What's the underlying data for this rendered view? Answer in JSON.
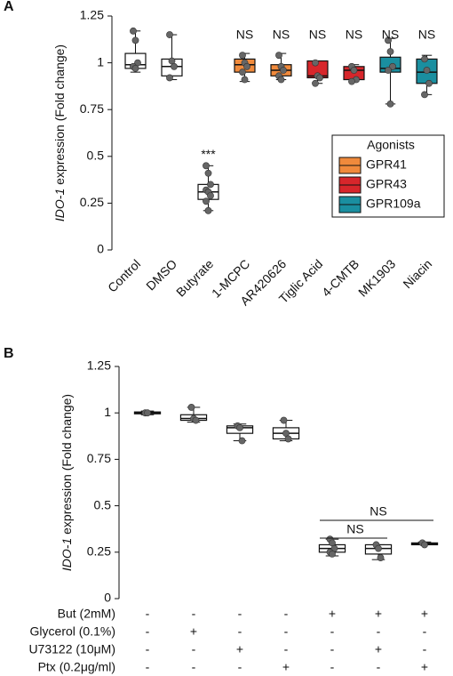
{
  "chart_data": [
    {
      "type": "box",
      "panel": "A",
      "y_label_italic": "IDO-1",
      "y_label": " expression (Fold change)",
      "ylim": [
        0,
        1.25
      ],
      "yticks": [
        0,
        0.25,
        0.5,
        0.75,
        1,
        1.25
      ],
      "categories": [
        "Control",
        "DMSO",
        "Butyrate",
        "1-MCPC",
        "AR420626",
        "Tiglic Acid",
        "4-CMTB",
        "MK1903",
        "Niacin"
      ],
      "colors": [
        "#ffffff",
        "#ffffff",
        "#ffffff",
        "#f08a3c",
        "#f08a3c",
        "#d7262b",
        "#d7262b",
        "#1a8fa0",
        "#1a8fa0"
      ],
      "boxes": [
        {
          "min": 0.95,
          "q1": 0.97,
          "median": 0.99,
          "q3": 1.05,
          "max": 1.17,
          "points": [
            1.17,
            1.12,
            1.0,
            0.98,
            0.97
          ]
        },
        {
          "min": 0.91,
          "q1": 0.93,
          "median": 0.98,
          "q3": 1.02,
          "max": 1.15,
          "points": [
            1.15,
            1.01,
            0.98,
            0.92
          ]
        },
        {
          "min": 0.21,
          "q1": 0.27,
          "median": 0.31,
          "q3": 0.35,
          "max": 0.45,
          "points": [
            0.45,
            0.41,
            0.35,
            0.32,
            0.31,
            0.29,
            0.26,
            0.21
          ]
        },
        {
          "min": 0.9,
          "q1": 0.95,
          "median": 0.99,
          "q3": 1.02,
          "max": 1.05,
          "points": [
            1.04,
            1.0,
            0.98,
            0.95,
            0.91
          ]
        },
        {
          "min": 0.91,
          "q1": 0.93,
          "median": 0.96,
          "q3": 0.99,
          "max": 1.05,
          "points": [
            1.04,
            0.98,
            0.96,
            0.93,
            0.91
          ]
        },
        {
          "min": 0.89,
          "q1": 0.92,
          "median": 0.93,
          "q3": 1.01,
          "max": 1.01,
          "points": [
            1.0,
            0.93,
            0.92,
            0.89
          ]
        },
        {
          "min": 0.9,
          "q1": 0.91,
          "median": 0.96,
          "q3": 0.98,
          "max": 0.99,
          "points": [
            0.98,
            0.96,
            0.91,
            0.9
          ]
        },
        {
          "min": 0.78,
          "q1": 0.95,
          "median": 0.97,
          "q3": 1.03,
          "max": 1.13,
          "points": [
            1.12,
            1.06,
            0.98,
            0.96,
            0.78
          ]
        },
        {
          "min": 0.83,
          "q1": 0.89,
          "median": 0.95,
          "q3": 1.02,
          "max": 1.04,
          "points": [
            1.02,
            0.96,
            0.89,
            0.83
          ]
        }
      ],
      "annotations": [
        {
          "index": 2,
          "text": "***"
        },
        {
          "index": 3,
          "text": "NS"
        },
        {
          "index": 4,
          "text": "NS"
        },
        {
          "index": 5,
          "text": "NS"
        },
        {
          "index": 6,
          "text": "NS"
        },
        {
          "index": 7,
          "text": "NS"
        },
        {
          "index": 8,
          "text": "NS"
        }
      ],
      "legend": {
        "title": "Agonists",
        "entries": [
          {
            "name": "GPR41",
            "color": "#f08a3c"
          },
          {
            "name": "GPR43",
            "color": "#d7262b"
          },
          {
            "name": "GPR109a",
            "color": "#1a8fa0"
          }
        ]
      }
    },
    {
      "type": "box",
      "panel": "B",
      "y_label_italic": "IDO-1",
      "y_label": " expression (Fold change)",
      "ylim": [
        0,
        1.25
      ],
      "yticks": [
        0,
        0.25,
        0.5,
        0.75,
        1,
        1.25
      ],
      "colors": [
        "#ffffff",
        "#ffffff",
        "#ffffff",
        "#ffffff",
        "#ffffff",
        "#ffffff",
        "#ffffff"
      ],
      "boxes": [
        {
          "min": 0.99,
          "q1": 0.995,
          "median": 1.0,
          "q3": 1.005,
          "max": 1.01,
          "points": [
            1.0,
            1.0
          ]
        },
        {
          "min": 0.95,
          "q1": 0.96,
          "median": 0.97,
          "q3": 0.99,
          "max": 1.03,
          "points": [
            1.03,
            0.97,
            0.96
          ]
        },
        {
          "min": 0.85,
          "q1": 0.89,
          "median": 0.92,
          "q3": 0.93,
          "max": 0.94,
          "points": [
            0.93,
            0.92,
            0.85
          ]
        },
        {
          "min": 0.85,
          "q1": 0.86,
          "median": 0.89,
          "q3": 0.92,
          "max": 0.96,
          "points": [
            0.96,
            0.89,
            0.86
          ]
        },
        {
          "min": 0.23,
          "q1": 0.25,
          "median": 0.27,
          "q3": 0.29,
          "max": 0.32,
          "points": [
            0.32,
            0.3,
            0.27,
            0.25,
            0.24
          ]
        },
        {
          "min": 0.21,
          "q1": 0.24,
          "median": 0.27,
          "q3": 0.29,
          "max": 0.29,
          "points": [
            0.29,
            0.27,
            0.22
          ]
        },
        {
          "min": 0.29,
          "q1": 0.29,
          "median": 0.295,
          "q3": 0.3,
          "max": 0.305,
          "points": [
            0.3,
            0.29
          ]
        }
      ],
      "brackets": [
        {
          "from": 4,
          "to": 5,
          "text": "NS"
        },
        {
          "from": 4,
          "to": 6,
          "text": "NS"
        }
      ],
      "conditions": [
        {
          "label": "But (2mM)",
          "signs": [
            "-",
            "-",
            "-",
            "-",
            "+",
            "+",
            "+"
          ]
        },
        {
          "label": "Glycerol (0.1%)",
          "signs": [
            "-",
            "+",
            "-",
            "-",
            "-",
            "-",
            "-"
          ]
        },
        {
          "label": "U73122 (10μM)",
          "signs": [
            "-",
            "-",
            "+",
            "-",
            "-",
            "+",
            "-"
          ]
        },
        {
          "label": "Ptx (0.2μg/ml)",
          "signs": [
            "-",
            "-",
            "-",
            "+",
            "-",
            "-",
            "+"
          ]
        }
      ]
    }
  ]
}
